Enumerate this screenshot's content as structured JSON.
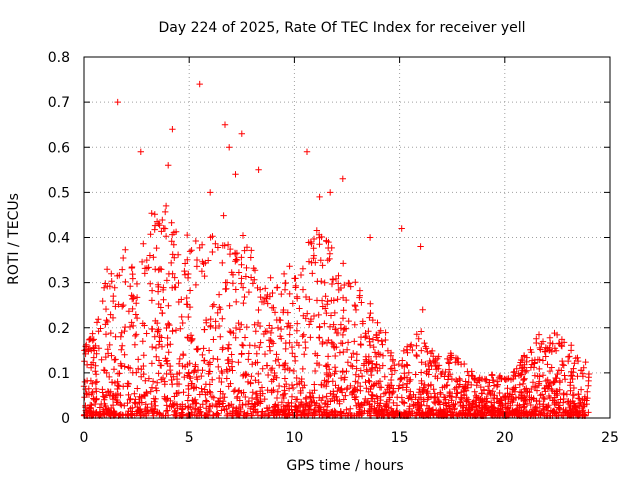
{
  "chart_data": {
    "type": "scatter",
    "title": "Day 224 of 2025, Rate Of TEC Index for receiver yell",
    "xlabel": "GPS time / hours",
    "ylabel": "ROTI / TECUs",
    "xlim": [
      0,
      25
    ],
    "ylim": [
      0,
      0.8
    ],
    "x_ticks": [
      0,
      5,
      10,
      15,
      20,
      25
    ],
    "y_ticks": [
      0,
      0.1,
      0.2,
      0.3,
      0.4,
      0.5,
      0.6,
      0.7,
      0.8
    ],
    "x_tick_labels": [
      "0",
      "5",
      "10",
      "15",
      "20",
      "25"
    ],
    "y_tick_labels": [
      "0",
      "0.1",
      "0.2",
      "0.3",
      "0.4",
      "0.5",
      "0.6",
      "0.7",
      "0.8"
    ],
    "grid": true,
    "marker": "+",
    "marker_color": "#ff0000",
    "envelope": {
      "description": "approximate upper envelope of dense ROTI scatter, sampled hourly",
      "x": [
        0,
        0.5,
        1,
        1.5,
        2,
        2.5,
        3,
        3.5,
        4,
        4.5,
        5,
        5.5,
        6,
        6.5,
        7,
        7.5,
        8,
        8.5,
        9,
        9.5,
        10,
        10.5,
        11,
        11.5,
        12,
        12.5,
        13,
        13.5,
        14,
        14.5,
        15,
        15.5,
        16,
        16.5,
        17,
        17.5,
        18,
        18.5,
        19,
        19.5,
        20,
        20.5,
        21,
        21.5,
        22,
        22.5,
        23,
        23.5,
        24
      ],
      "y": [
        0.14,
        0.2,
        0.3,
        0.32,
        0.38,
        0.35,
        0.4,
        0.44,
        0.46,
        0.42,
        0.38,
        0.36,
        0.4,
        0.42,
        0.38,
        0.4,
        0.34,
        0.3,
        0.28,
        0.3,
        0.32,
        0.36,
        0.42,
        0.4,
        0.34,
        0.3,
        0.28,
        0.24,
        0.2,
        0.16,
        0.14,
        0.16,
        0.18,
        0.14,
        0.12,
        0.14,
        0.12,
        0.1,
        0.08,
        0.1,
        0.08,
        0.1,
        0.14,
        0.18,
        0.16,
        0.18,
        0.16,
        0.12,
        0.12
      ]
    },
    "outliers": {
      "x": [
        1.6,
        5.5,
        4.2,
        4.0,
        6.7,
        7.5,
        2.7,
        10.6,
        7.2,
        8.3,
        12.3,
        15.1,
        16.0,
        13.6,
        3.9,
        6.9,
        11.2,
        16.1,
        11.7,
        6.0
      ],
      "y": [
        0.7,
        0.74,
        0.64,
        0.56,
        0.65,
        0.63,
        0.59,
        0.59,
        0.54,
        0.55,
        0.53,
        0.42,
        0.38,
        0.4,
        0.47,
        0.6,
        0.49,
        0.24,
        0.5,
        0.5
      ]
    },
    "point_count": 2600
  }
}
